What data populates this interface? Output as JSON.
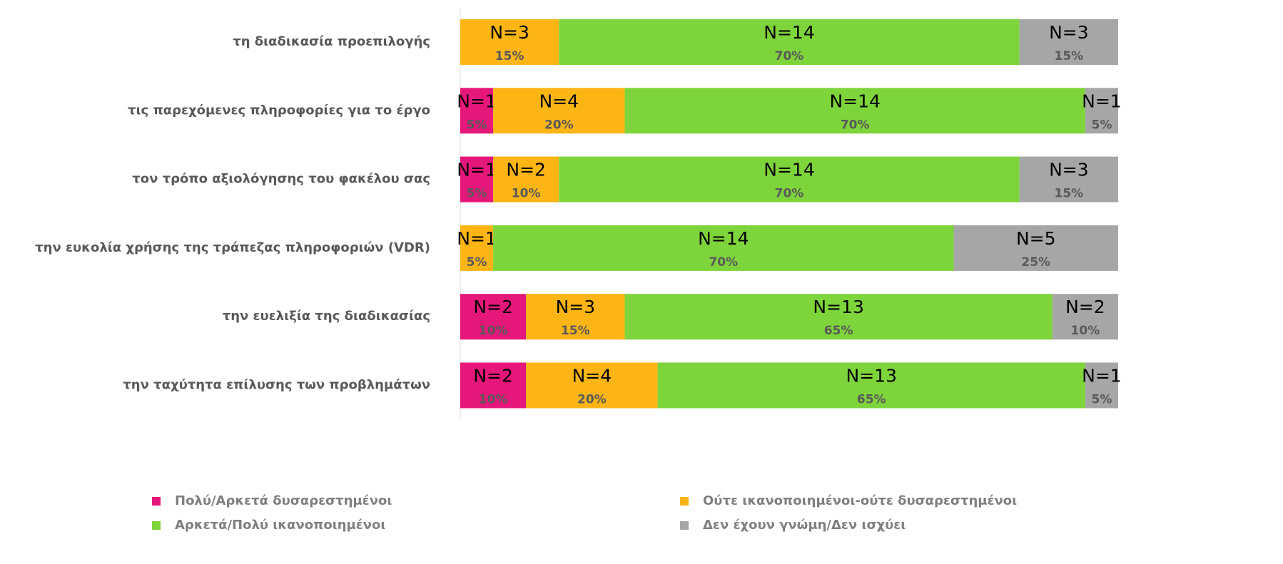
{
  "chart_data": {
    "type": "stacked_bar_horizontal_100",
    "categories": [
      "τη διαδικασία προεπιλογής",
      "τις παρεχόμενες πληροφορίες για το έργο",
      "τον τρόπο αξιολόγησης του φακέλου σας",
      "την ευκολία χρήσης της τράπεζας πληροφοριών (VDR)",
      "την ευελιξία της διαδικασίας",
      "την ταχύτητα επίλυσης των προβλημάτων"
    ],
    "xlim": [
      0,
      100
    ],
    "series": [
      {
        "name": "Πολύ/Αρκετά δυσαρεστημένοι",
        "color": "#e6177a",
        "values": [
          0,
          5,
          5,
          0,
          10,
          10
        ],
        "value_labels": [
          null,
          "5%",
          "5%",
          null,
          "10%",
          "10%"
        ],
        "count_labels": [
          null,
          "N=1",
          "N=1",
          null,
          "N=2",
          "N=2"
        ]
      },
      {
        "name": "Ούτε ικανοποιημένοι-ούτε δυσαρεστημένοι",
        "color": "#fdb515",
        "values": [
          15,
          20,
          10,
          5,
          15,
          20
        ],
        "value_labels": [
          "15%",
          "20%",
          "10%",
          "5%",
          "15%",
          "20%"
        ],
        "count_labels": [
          "N=3",
          "N=4",
          "N=2",
          "N=1",
          "N=3",
          "N=4"
        ]
      },
      {
        "name": "Αρκετά/Πολύ ικανοποιημένοι",
        "color": "#7ed43b",
        "values": [
          70,
          70,
          70,
          70,
          65,
          65
        ],
        "value_labels": [
          "70%",
          "70%",
          "70%",
          "70%",
          "65%",
          "65%"
        ],
        "count_labels": [
          "N=14",
          "N=14",
          "N=14",
          "N=14",
          "N=13",
          "N=13"
        ]
      },
      {
        "name": "Δεν έχουν γνώμη/Δεν ισχύει",
        "color": "#a6a6a6",
        "values": [
          15,
          5,
          15,
          25,
          10,
          5
        ],
        "value_labels": [
          "15%",
          "5%",
          "15%",
          "25%",
          "10%",
          "5%"
        ],
        "count_labels": [
          "N=3",
          "N=1",
          "N=3",
          "N=5",
          "N=2",
          "N=1"
        ]
      }
    ]
  }
}
